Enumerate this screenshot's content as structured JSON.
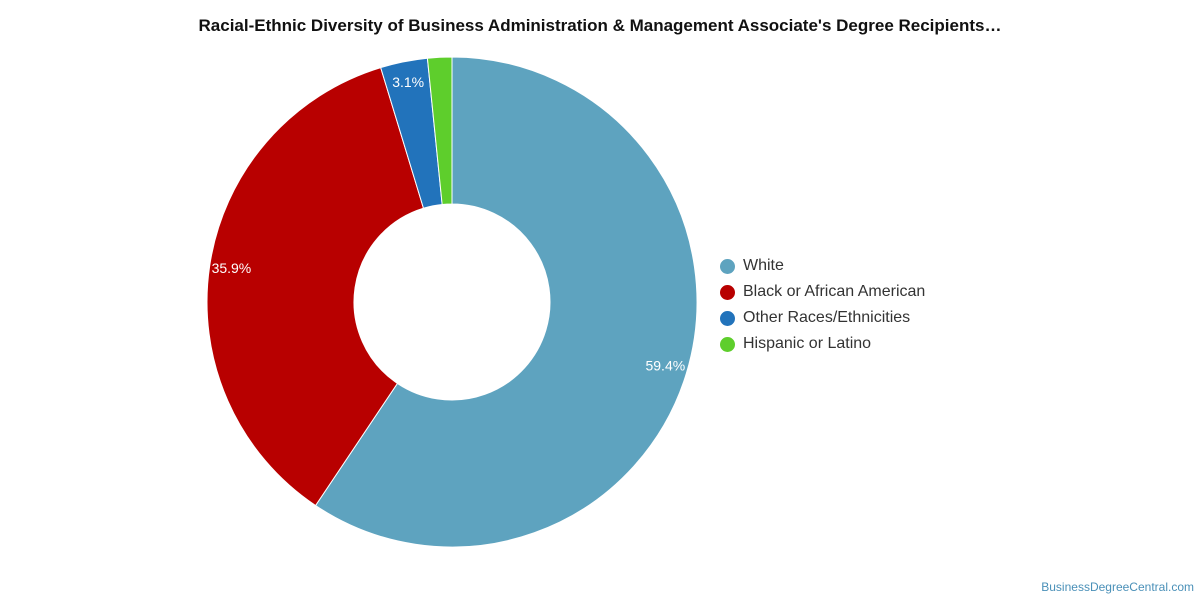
{
  "title": "Racial-Ethnic Diversity of Business Administration & Management Associate's Degree Recipients…",
  "source_credit": "BusinessDegreeCentral.com",
  "chart_data": {
    "type": "pie",
    "donut": true,
    "legend_position": "right",
    "slices": [
      {
        "name": "White",
        "value": 59.4,
        "label": "59.4%",
        "color": "#5ea3bf"
      },
      {
        "name": "Black or African American",
        "value": 35.9,
        "label": "35.9%",
        "color": "#b80000"
      },
      {
        "name": "Other Races/Ethnicities",
        "value": 3.1,
        "label": "3.1%",
        "color": "#2273bb"
      },
      {
        "name": "Hispanic or Latino",
        "value": 1.6,
        "label": "",
        "color": "#5ece2c"
      }
    ]
  }
}
